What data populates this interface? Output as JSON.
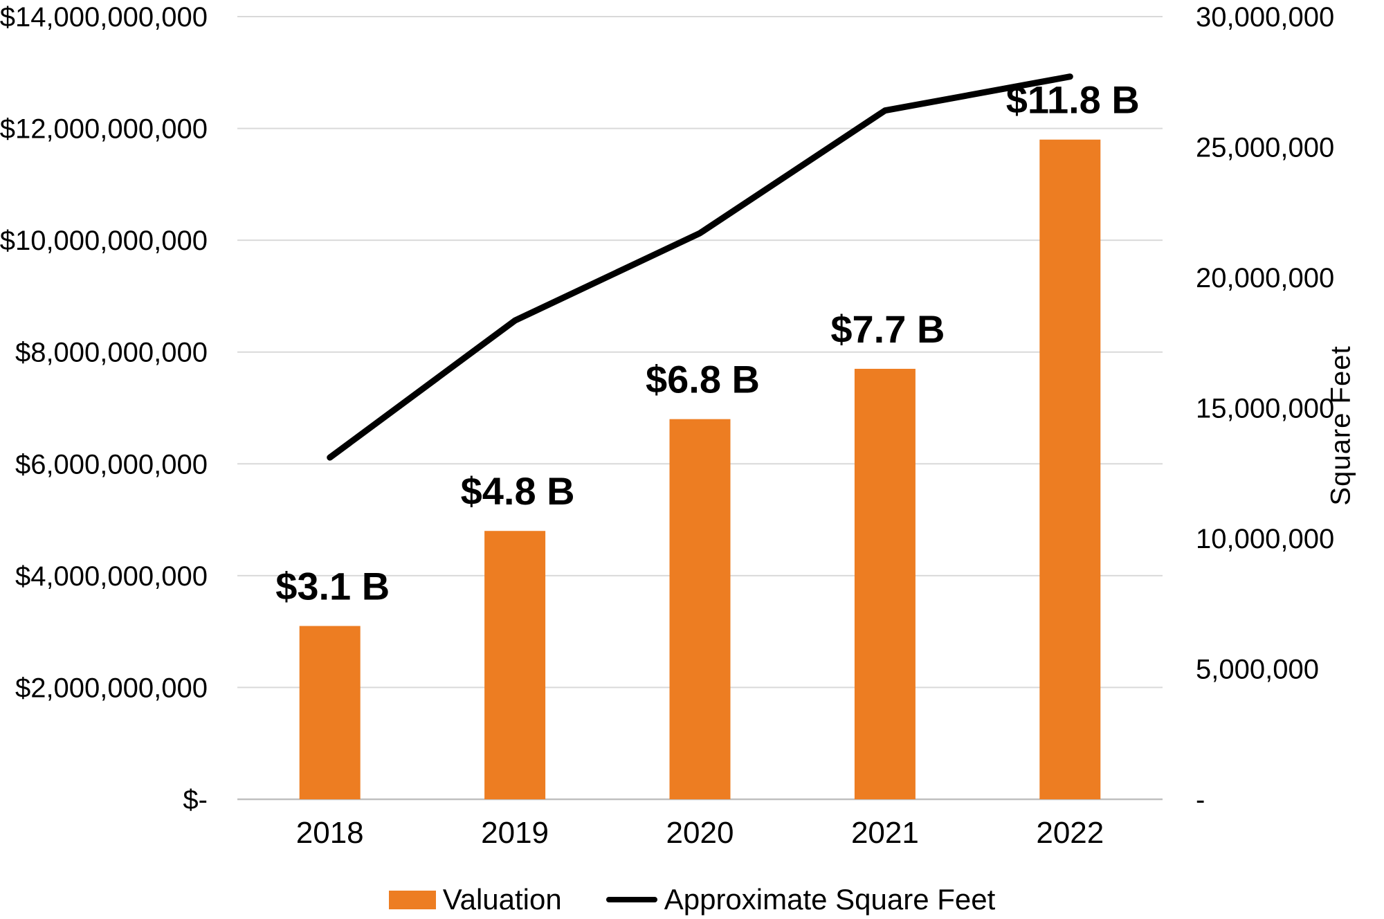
{
  "chart_data": {
    "type": "combo",
    "title": "",
    "categories": [
      "2018",
      "2019",
      "2020",
      "2021",
      "2022"
    ],
    "series": [
      {
        "name": "Valuation",
        "type": "bar",
        "axis": "left",
        "color": "#ED7D22",
        "values": [
          3100000000,
          4800000000,
          6800000000,
          7700000000,
          11800000000
        ],
        "data_labels": [
          "$3.1 B",
          "$4.8 B",
          "$6.8 B",
          "$7.7 B",
          "$11.8 B"
        ]
      },
      {
        "name": "Approximate Square Feet",
        "type": "line",
        "axis": "right",
        "color": "#000000",
        "values": [
          13100000,
          18350000,
          21700000,
          26400000,
          27700000
        ]
      }
    ],
    "left_axis": {
      "min": 0,
      "max": 14000000000,
      "step": 2000000000,
      "tick_labels": [
        "$-",
        "$2,000,000,000",
        "$4,000,000,000",
        "$6,000,000,000",
        "$8,000,000,000",
        "$10,000,000,000",
        "$12,000,000,000",
        "$14,000,000,000"
      ],
      "title": ""
    },
    "right_axis": {
      "min": 0,
      "max": 30000000,
      "step": 5000000,
      "tick_labels": [
        "-",
        "5,000,000",
        "10,000,000",
        "15,000,000",
        "20,000,000",
        "25,000,000",
        "30,000,000"
      ],
      "title": "Square Feet"
    },
    "x_axis": {
      "tick_labels": [
        "2018",
        "2019",
        "2020",
        "2021",
        "2022"
      ]
    },
    "legend": {
      "position": "bottom",
      "entries": [
        "Valuation",
        "Approximate Square Feet"
      ]
    },
    "grid": true,
    "colors": {
      "background": "#FFFFFF",
      "gridline": "#D9D9D9",
      "axis_line": "#BFBFBF",
      "text": "#000000",
      "bar": "#ED7D22",
      "line": "#000000"
    }
  }
}
